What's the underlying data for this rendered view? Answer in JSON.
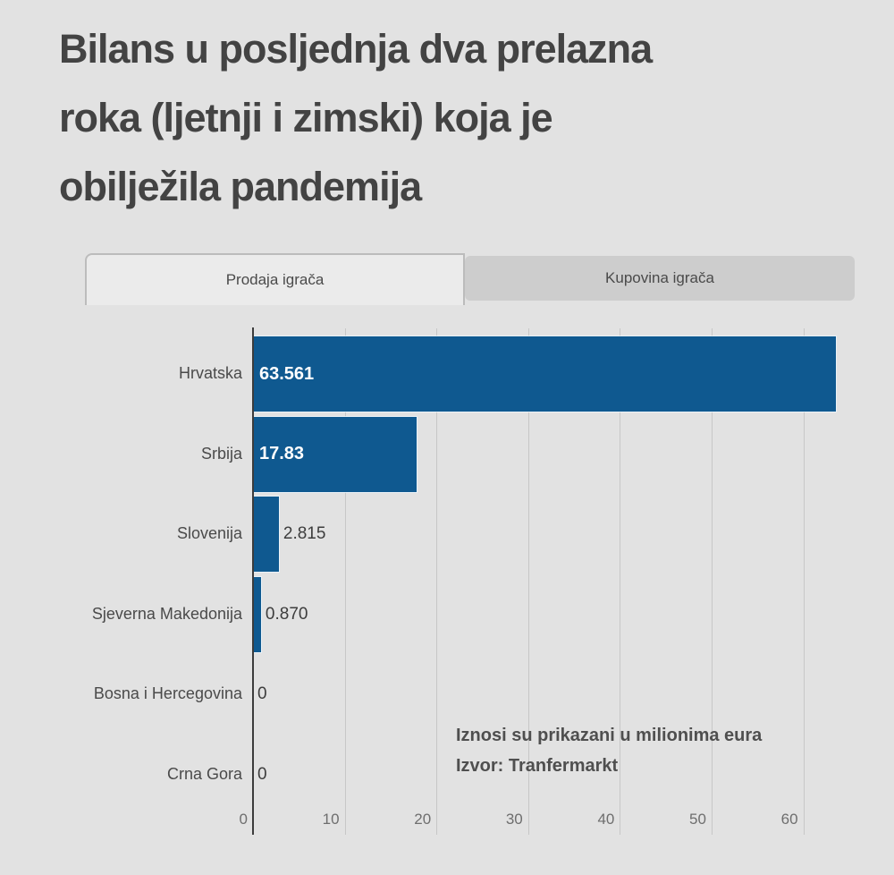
{
  "title_lines": [
    "Bilans u posljednja dva prelazna",
    "roka (ljetnji i zimski) koja je",
    "obilježila pandemija"
  ],
  "tabs": [
    {
      "label": "Prodaja igrača",
      "active": true
    },
    {
      "label": "Kupovina igrača",
      "active": false
    }
  ],
  "chart_data": {
    "type": "bar",
    "orientation": "horizontal",
    "categories": [
      "Hrvatska",
      "Srbija",
      "Slovenija",
      "Sjeverna Makedonija",
      "Bosna i Hercegovina",
      "Crna Gora"
    ],
    "values": [
      63.561,
      17.83,
      2.815,
      0.87,
      0,
      0
    ],
    "value_labels": [
      "63.561",
      "17.83",
      "2.815",
      "0.870",
      "0",
      "0"
    ],
    "xticks": [
      0,
      10,
      20,
      30,
      40,
      50,
      60
    ],
    "xlim": [
      0,
      65.6
    ],
    "grid": true,
    "unit_note": "Iznosi su prikazani u milionima eura",
    "source_note": "Izvor: Tranfermarkt",
    "bar_color": "#0f5990",
    "background_color": "#e2e2e2",
    "active_tab_color": "#ebebeb",
    "inactive_tab_color": "#cdcdcd"
  }
}
